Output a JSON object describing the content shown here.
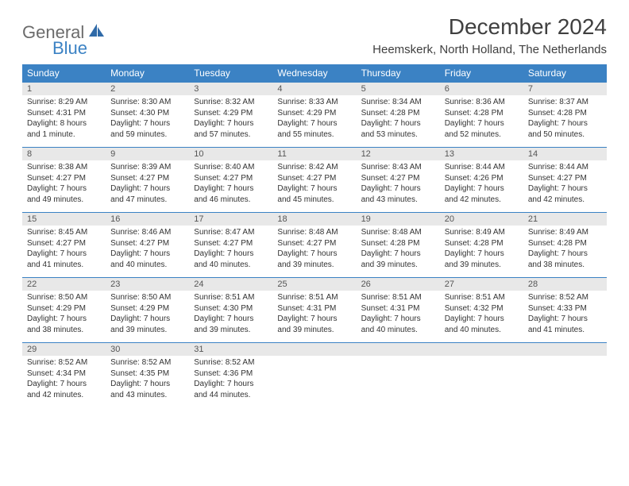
{
  "brand": {
    "line1": "General",
    "line2": "Blue"
  },
  "title": "December 2024",
  "location": "Heemskerk, North Holland, The Netherlands",
  "colors": {
    "header_bg": "#3b82c4",
    "header_text": "#ffffff",
    "daynum_bg": "#e8e8e8",
    "border": "#3b82c4",
    "title_color": "#404040",
    "body_text": "#333333"
  },
  "weekdays": [
    "Sunday",
    "Monday",
    "Tuesday",
    "Wednesday",
    "Thursday",
    "Friday",
    "Saturday"
  ],
  "days": [
    {
      "n": "1",
      "sunrise": "8:29 AM",
      "sunset": "4:31 PM",
      "daylight": "8 hours and 1 minute."
    },
    {
      "n": "2",
      "sunrise": "8:30 AM",
      "sunset": "4:30 PM",
      "daylight": "7 hours and 59 minutes."
    },
    {
      "n": "3",
      "sunrise": "8:32 AM",
      "sunset": "4:29 PM",
      "daylight": "7 hours and 57 minutes."
    },
    {
      "n": "4",
      "sunrise": "8:33 AM",
      "sunset": "4:29 PM",
      "daylight": "7 hours and 55 minutes."
    },
    {
      "n": "5",
      "sunrise": "8:34 AM",
      "sunset": "4:28 PM",
      "daylight": "7 hours and 53 minutes."
    },
    {
      "n": "6",
      "sunrise": "8:36 AM",
      "sunset": "4:28 PM",
      "daylight": "7 hours and 52 minutes."
    },
    {
      "n": "7",
      "sunrise": "8:37 AM",
      "sunset": "4:28 PM",
      "daylight": "7 hours and 50 minutes."
    },
    {
      "n": "8",
      "sunrise": "8:38 AM",
      "sunset": "4:27 PM",
      "daylight": "7 hours and 49 minutes."
    },
    {
      "n": "9",
      "sunrise": "8:39 AM",
      "sunset": "4:27 PM",
      "daylight": "7 hours and 47 minutes."
    },
    {
      "n": "10",
      "sunrise": "8:40 AM",
      "sunset": "4:27 PM",
      "daylight": "7 hours and 46 minutes."
    },
    {
      "n": "11",
      "sunrise": "8:42 AM",
      "sunset": "4:27 PM",
      "daylight": "7 hours and 45 minutes."
    },
    {
      "n": "12",
      "sunrise": "8:43 AM",
      "sunset": "4:27 PM",
      "daylight": "7 hours and 43 minutes."
    },
    {
      "n": "13",
      "sunrise": "8:44 AM",
      "sunset": "4:26 PM",
      "daylight": "7 hours and 42 minutes."
    },
    {
      "n": "14",
      "sunrise": "8:44 AM",
      "sunset": "4:27 PM",
      "daylight": "7 hours and 42 minutes."
    },
    {
      "n": "15",
      "sunrise": "8:45 AM",
      "sunset": "4:27 PM",
      "daylight": "7 hours and 41 minutes."
    },
    {
      "n": "16",
      "sunrise": "8:46 AM",
      "sunset": "4:27 PM",
      "daylight": "7 hours and 40 minutes."
    },
    {
      "n": "17",
      "sunrise": "8:47 AM",
      "sunset": "4:27 PM",
      "daylight": "7 hours and 40 minutes."
    },
    {
      "n": "18",
      "sunrise": "8:48 AM",
      "sunset": "4:27 PM",
      "daylight": "7 hours and 39 minutes."
    },
    {
      "n": "19",
      "sunrise": "8:48 AM",
      "sunset": "4:28 PM",
      "daylight": "7 hours and 39 minutes."
    },
    {
      "n": "20",
      "sunrise": "8:49 AM",
      "sunset": "4:28 PM",
      "daylight": "7 hours and 39 minutes."
    },
    {
      "n": "21",
      "sunrise": "8:49 AM",
      "sunset": "4:28 PM",
      "daylight": "7 hours and 38 minutes."
    },
    {
      "n": "22",
      "sunrise": "8:50 AM",
      "sunset": "4:29 PM",
      "daylight": "7 hours and 38 minutes."
    },
    {
      "n": "23",
      "sunrise": "8:50 AM",
      "sunset": "4:29 PM",
      "daylight": "7 hours and 39 minutes."
    },
    {
      "n": "24",
      "sunrise": "8:51 AM",
      "sunset": "4:30 PM",
      "daylight": "7 hours and 39 minutes."
    },
    {
      "n": "25",
      "sunrise": "8:51 AM",
      "sunset": "4:31 PM",
      "daylight": "7 hours and 39 minutes."
    },
    {
      "n": "26",
      "sunrise": "8:51 AM",
      "sunset": "4:31 PM",
      "daylight": "7 hours and 40 minutes."
    },
    {
      "n": "27",
      "sunrise": "8:51 AM",
      "sunset": "4:32 PM",
      "daylight": "7 hours and 40 minutes."
    },
    {
      "n": "28",
      "sunrise": "8:52 AM",
      "sunset": "4:33 PM",
      "daylight": "7 hours and 41 minutes."
    },
    {
      "n": "29",
      "sunrise": "8:52 AM",
      "sunset": "4:34 PM",
      "daylight": "7 hours and 42 minutes."
    },
    {
      "n": "30",
      "sunrise": "8:52 AM",
      "sunset": "4:35 PM",
      "daylight": "7 hours and 43 minutes."
    },
    {
      "n": "31",
      "sunrise": "8:52 AM",
      "sunset": "4:36 PM",
      "daylight": "7 hours and 44 minutes."
    }
  ],
  "labels": {
    "sunrise": "Sunrise:",
    "sunset": "Sunset:",
    "daylight": "Daylight:"
  }
}
